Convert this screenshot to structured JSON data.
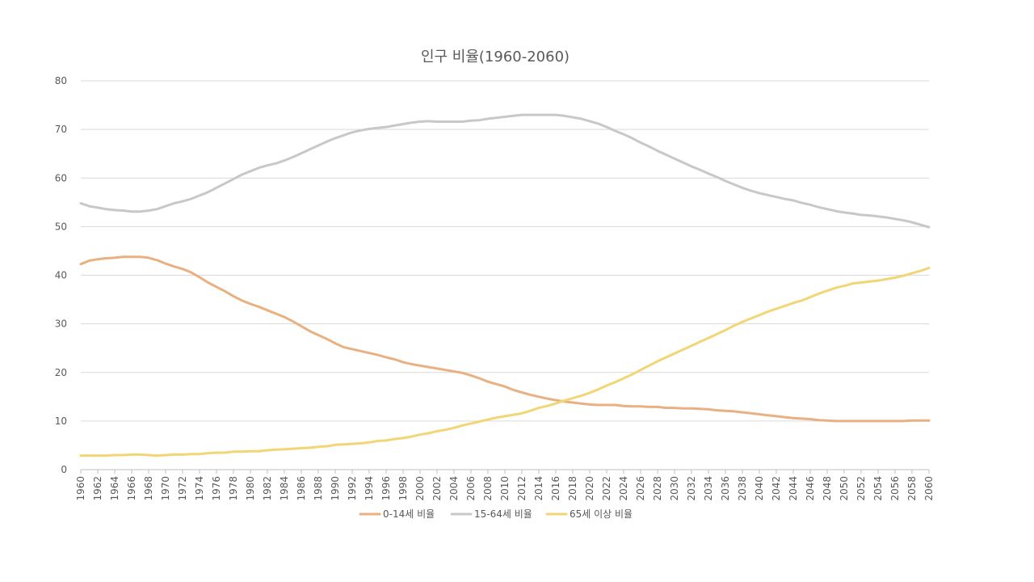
{
  "chart_data": {
    "type": "line",
    "title": "인구 비율(1960-2060)",
    "xlabel": "",
    "ylabel": "",
    "ylim": [
      0,
      80
    ],
    "yticks": [
      0,
      10,
      20,
      30,
      40,
      50,
      60,
      70,
      80
    ],
    "grid": true,
    "legend_position": "bottom",
    "x": [
      1960,
      1961,
      1962,
      1963,
      1964,
      1965,
      1966,
      1967,
      1968,
      1969,
      1970,
      1971,
      1972,
      1973,
      1974,
      1975,
      1976,
      1977,
      1978,
      1979,
      1980,
      1981,
      1982,
      1983,
      1984,
      1985,
      1986,
      1987,
      1988,
      1989,
      1990,
      1991,
      1992,
      1993,
      1994,
      1995,
      1996,
      1997,
      1998,
      1999,
      2000,
      2001,
      2002,
      2003,
      2004,
      2005,
      2006,
      2007,
      2008,
      2009,
      2010,
      2011,
      2012,
      2013,
      2014,
      2015,
      2016,
      2017,
      2018,
      2019,
      2020,
      2021,
      2022,
      2023,
      2024,
      2025,
      2026,
      2027,
      2028,
      2029,
      2030,
      2031,
      2032,
      2033,
      2034,
      2035,
      2036,
      2037,
      2038,
      2039,
      2040,
      2041,
      2042,
      2043,
      2044,
      2045,
      2046,
      2047,
      2048,
      2049,
      2050,
      2051,
      2052,
      2053,
      2054,
      2055,
      2056,
      2057,
      2058,
      2059,
      2060
    ],
    "xticks": [
      1960,
      1962,
      1964,
      1966,
      1968,
      1970,
      1972,
      1974,
      1976,
      1978,
      1980,
      1982,
      1984,
      1986,
      1988,
      1990,
      1992,
      1994,
      1996,
      1998,
      2000,
      2002,
      2004,
      2006,
      2008,
      2010,
      2012,
      2014,
      2016,
      2018,
      2020,
      2022,
      2024,
      2026,
      2028,
      2030,
      2032,
      2034,
      2036,
      2038,
      2040,
      2042,
      2044,
      2046,
      2048,
      2050,
      2052,
      2054,
      2056,
      2058,
      2060
    ],
    "series": [
      {
        "name": "0-14세 비율",
        "color": "#E9B181",
        "values": [
          42.3,
          43.0,
          43.3,
          43.5,
          43.6,
          43.8,
          43.8,
          43.8,
          43.6,
          43.1,
          42.4,
          41.8,
          41.3,
          40.6,
          39.6,
          38.5,
          37.6,
          36.7,
          35.7,
          34.8,
          34.1,
          33.5,
          32.8,
          32.1,
          31.4,
          30.5,
          29.5,
          28.5,
          27.7,
          26.9,
          26.0,
          25.2,
          24.8,
          24.4,
          24.0,
          23.6,
          23.1,
          22.7,
          22.1,
          21.7,
          21.4,
          21.1,
          20.8,
          20.5,
          20.2,
          19.9,
          19.4,
          18.8,
          18.1,
          17.6,
          17.1,
          16.4,
          15.9,
          15.4,
          15.0,
          14.6,
          14.3,
          14.0,
          13.8,
          13.6,
          13.4,
          13.3,
          13.3,
          13.3,
          13.1,
          13.0,
          13.0,
          12.9,
          12.9,
          12.7,
          12.7,
          12.6,
          12.6,
          12.5,
          12.4,
          12.2,
          12.1,
          12.0,
          11.8,
          11.6,
          11.4,
          11.2,
          11.0,
          10.8,
          10.6,
          10.5,
          10.4,
          10.2,
          10.1,
          10.0,
          10.0,
          10.0,
          10.0,
          10.0,
          10.0,
          10.0,
          10.0,
          10.0,
          10.1,
          10.1,
          10.1
        ]
      },
      {
        "name": "15-64세 비율",
        "color": "#C8C8C8",
        "values": [
          54.8,
          54.2,
          53.9,
          53.6,
          53.4,
          53.3,
          53.1,
          53.1,
          53.3,
          53.6,
          54.2,
          54.8,
          55.2,
          55.7,
          56.4,
          57.1,
          58.0,
          58.9,
          59.8,
          60.7,
          61.4,
          62.1,
          62.6,
          63.0,
          63.6,
          64.3,
          65.1,
          65.9,
          66.7,
          67.5,
          68.2,
          68.8,
          69.4,
          69.8,
          70.1,
          70.3,
          70.5,
          70.8,
          71.1,
          71.4,
          71.6,
          71.7,
          71.6,
          71.6,
          71.6,
          71.6,
          71.8,
          71.9,
          72.2,
          72.4,
          72.6,
          72.8,
          73.0,
          73.0,
          73.0,
          73.0,
          73.0,
          72.8,
          72.5,
          72.2,
          71.7,
          71.2,
          70.5,
          69.7,
          69.0,
          68.2,
          67.3,
          66.5,
          65.6,
          64.8,
          64.0,
          63.2,
          62.4,
          61.7,
          60.9,
          60.2,
          59.4,
          58.7,
          58.0,
          57.4,
          56.9,
          56.5,
          56.1,
          55.7,
          55.4,
          54.9,
          54.5,
          54.0,
          53.6,
          53.2,
          52.9,
          52.7,
          52.4,
          52.3,
          52.1,
          51.9,
          51.6,
          51.3,
          50.9,
          50.4,
          49.9
        ]
      },
      {
        "name": "65세 이상 비율",
        "color": "#F2D675",
        "values": [
          2.9,
          2.9,
          2.9,
          2.9,
          3.0,
          3.0,
          3.1,
          3.1,
          3.0,
          2.9,
          3.0,
          3.1,
          3.1,
          3.2,
          3.2,
          3.4,
          3.5,
          3.5,
          3.7,
          3.7,
          3.8,
          3.8,
          4.0,
          4.1,
          4.2,
          4.3,
          4.4,
          4.5,
          4.7,
          4.8,
          5.1,
          5.2,
          5.3,
          5.4,
          5.6,
          5.9,
          6.0,
          6.3,
          6.5,
          6.8,
          7.2,
          7.5,
          7.9,
          8.2,
          8.6,
          9.1,
          9.5,
          9.9,
          10.3,
          10.7,
          11.0,
          11.3,
          11.6,
          12.1,
          12.7,
          13.1,
          13.6,
          14.2,
          14.7,
          15.2,
          15.8,
          16.5,
          17.3,
          18.0,
          18.8,
          19.6,
          20.5,
          21.4,
          22.3,
          23.1,
          23.9,
          24.7,
          25.5,
          26.3,
          27.1,
          27.9,
          28.7,
          29.6,
          30.4,
          31.1,
          31.8,
          32.5,
          33.1,
          33.7,
          34.3,
          34.8,
          35.5,
          36.2,
          36.8,
          37.4,
          37.8,
          38.3,
          38.5,
          38.7,
          38.9,
          39.2,
          39.5,
          39.9,
          40.4,
          40.9,
          41.5
        ]
      }
    ]
  }
}
